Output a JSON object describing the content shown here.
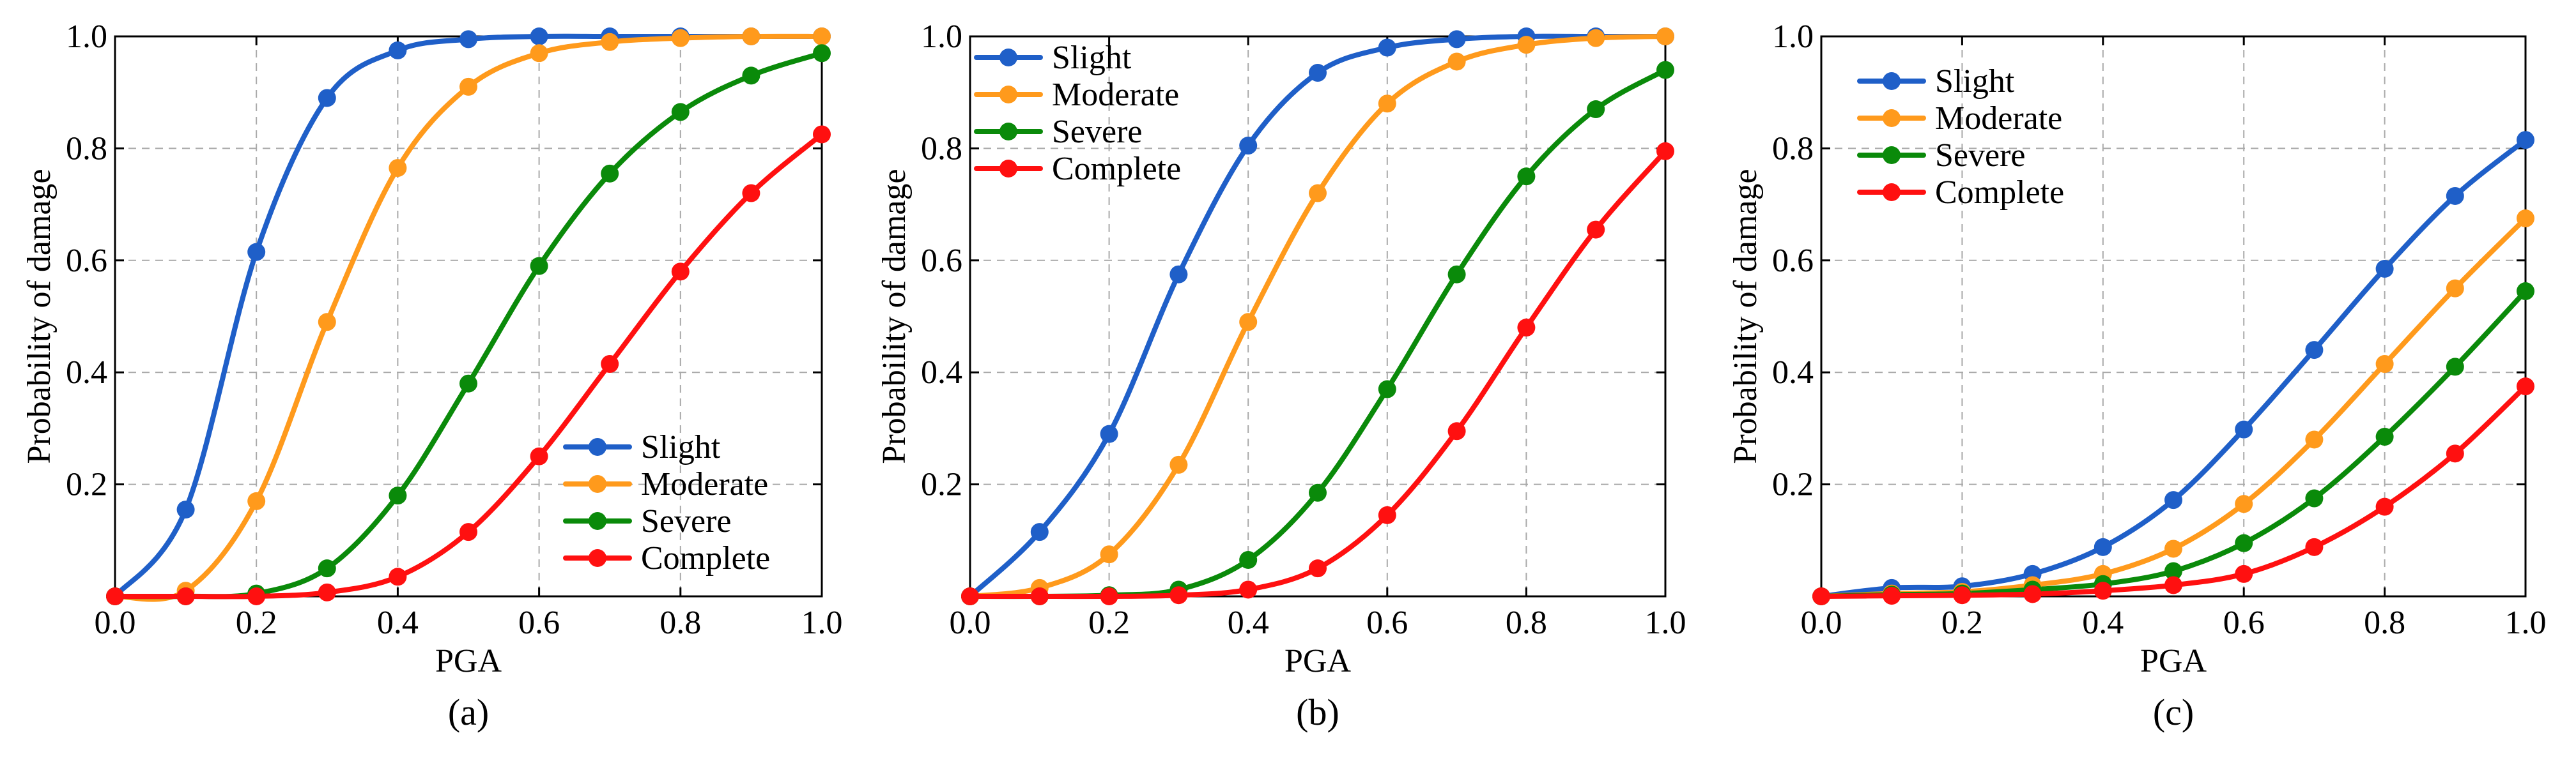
{
  "figure": {
    "panel_labels": [
      "(a)",
      "(b)",
      "(c)"
    ]
  },
  "chart_data": [
    {
      "type": "line",
      "panel_label": "(a)",
      "xlabel": "PGA",
      "ylabel": "Probability of damage",
      "xlim": [
        0,
        1
      ],
      "ylim": [
        0,
        1
      ],
      "xticks": [
        "0.0",
        "0.2",
        "0.4",
        "0.6",
        "0.8",
        "1.0"
      ],
      "yticks": [
        "0.2",
        "0.4",
        "0.6",
        "0.8",
        "1.0"
      ],
      "grid": true,
      "legend_position": "lower-right",
      "x": [
        0,
        0.1,
        0.2,
        0.3,
        0.4,
        0.5,
        0.6,
        0.7,
        0.8,
        0.9,
        1.0
      ],
      "series": [
        {
          "name": "Slight",
          "color": "#1f5fc8",
          "values": [
            0,
            0.155,
            0.615,
            0.89,
            0.975,
            0.995,
            1.0,
            1.0,
            1.0,
            1.0,
            1.0
          ]
        },
        {
          "name": "Moderate",
          "color": "#ff9a1c",
          "values": [
            0,
            0.01,
            0.17,
            0.49,
            0.765,
            0.91,
            0.97,
            0.99,
            0.997,
            1.0,
            1.0
          ]
        },
        {
          "name": "Severe",
          "color": "#0a8a0a",
          "values": [
            0,
            0,
            0.005,
            0.05,
            0.18,
            0.38,
            0.59,
            0.755,
            0.865,
            0.93,
            0.97
          ]
        },
        {
          "name": "Complete",
          "color": "#ff1010",
          "values": [
            0,
            0,
            0,
            0.007,
            0.035,
            0.115,
            0.25,
            0.415,
            0.58,
            0.72,
            0.825
          ]
        }
      ]
    },
    {
      "type": "line",
      "panel_label": "(b)",
      "xlabel": "PGA",
      "ylabel": "Probability of damage",
      "xlim": [
        0,
        1
      ],
      "ylim": [
        0,
        1
      ],
      "xticks": [
        "0.0",
        "0.2",
        "0.4",
        "0.6",
        "0.8",
        "1.0"
      ],
      "yticks": [
        "0.2",
        "0.4",
        "0.6",
        "0.8",
        "1.0"
      ],
      "grid": true,
      "legend_position": "top-left",
      "x": [
        0,
        0.1,
        0.2,
        0.3,
        0.4,
        0.5,
        0.6,
        0.7,
        0.8,
        0.9,
        1.0
      ],
      "series": [
        {
          "name": "Slight",
          "color": "#1f5fc8",
          "values": [
            0,
            0.115,
            0.29,
            0.575,
            0.805,
            0.935,
            0.98,
            0.995,
            1.0,
            1.0,
            1.0
          ]
        },
        {
          "name": "Moderate",
          "color": "#ff9a1c",
          "values": [
            0,
            0.015,
            0.075,
            0.235,
            0.49,
            0.72,
            0.88,
            0.955,
            0.985,
            0.997,
            1.0
          ]
        },
        {
          "name": "Severe",
          "color": "#0a8a0a",
          "values": [
            0,
            0,
            0.002,
            0.012,
            0.065,
            0.185,
            0.37,
            0.575,
            0.75,
            0.87,
            0.94
          ]
        },
        {
          "name": "Complete",
          "color": "#ff1010",
          "values": [
            0,
            0,
            0,
            0.002,
            0.012,
            0.05,
            0.145,
            0.295,
            0.48,
            0.655,
            0.795
          ]
        }
      ]
    },
    {
      "type": "line",
      "panel_label": "(c)",
      "xlabel": "PGA",
      "ylabel": "Probability of damage",
      "xlim": [
        0,
        1
      ],
      "ylim": [
        0,
        1
      ],
      "xticks": [
        "0.0",
        "0.2",
        "0.4",
        "0.6",
        "0.8",
        "1.0"
      ],
      "yticks": [
        "0.2",
        "0.4",
        "0.6",
        "0.8",
        "1.0"
      ],
      "grid": true,
      "legend_position": "top-left",
      "x": [
        0,
        0.1,
        0.2,
        0.3,
        0.4,
        0.5,
        0.6,
        0.7,
        0.8,
        0.9,
        1.0
      ],
      "series": [
        {
          "name": "Slight",
          "color": "#1f5fc8",
          "values": [
            0,
            0.015,
            0.018,
            0.04,
            0.088,
            0.172,
            0.298,
            0.44,
            0.585,
            0.715,
            0.815
          ]
        },
        {
          "name": "Moderate",
          "color": "#ff9a1c",
          "values": [
            0,
            0.005,
            0.008,
            0.02,
            0.04,
            0.085,
            0.165,
            0.28,
            0.415,
            0.55,
            0.675
          ]
        },
        {
          "name": "Severe",
          "color": "#0a8a0a",
          "values": [
            0,
            0.003,
            0.005,
            0.012,
            0.022,
            0.045,
            0.095,
            0.175,
            0.285,
            0.41,
            0.545
          ]
        },
        {
          "name": "Complete",
          "color": "#ff1010",
          "values": [
            0,
            0.001,
            0.002,
            0.004,
            0.01,
            0.02,
            0.04,
            0.088,
            0.16,
            0.255,
            0.375
          ]
        }
      ]
    }
  ]
}
